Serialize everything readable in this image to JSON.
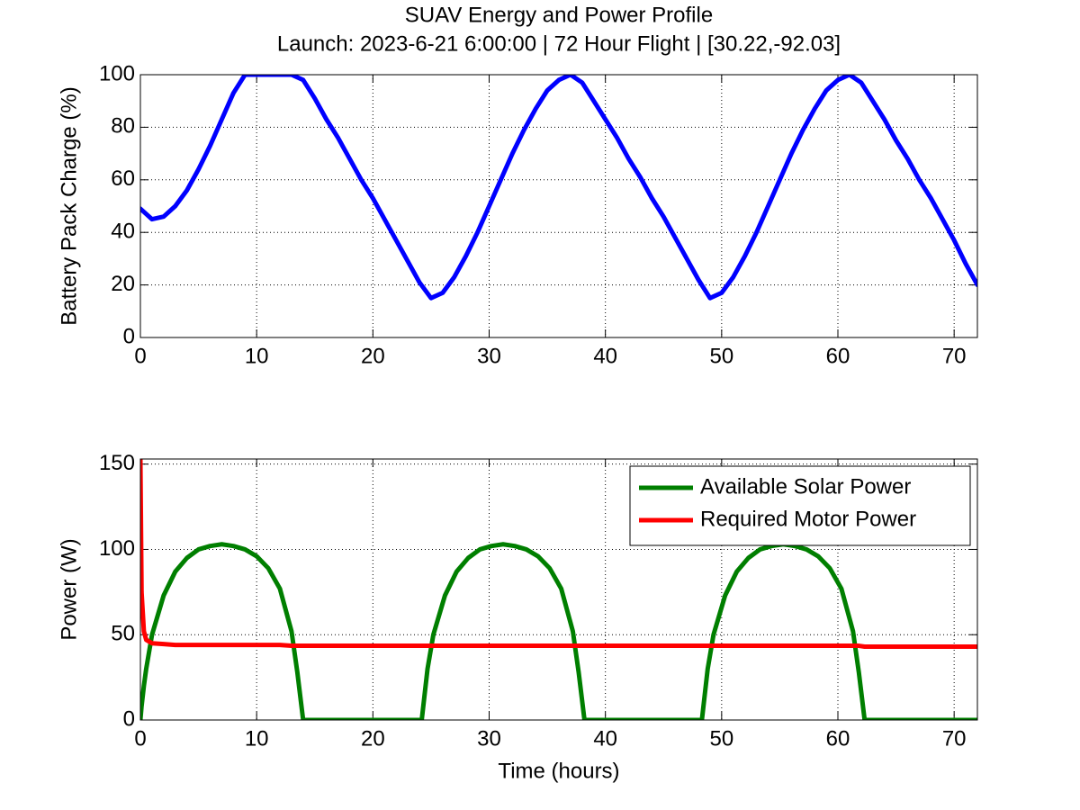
{
  "chart_data": [
    {
      "type": "line",
      "title": "SUAV Energy and Power Profile",
      "subtitle": "Launch: 2023-6-21 6:00:00 | 72 Hour Flight | [30.22,-92.03]",
      "ylabel": "Battery Pack Charge (%)",
      "x": [
        0,
        1,
        2,
        3,
        4,
        5,
        6,
        7,
        8,
        9,
        10,
        11,
        12,
        13,
        14,
        15,
        16,
        17,
        18,
        19,
        20,
        21,
        22,
        23,
        24,
        25,
        26,
        27,
        28,
        29,
        30,
        31,
        32,
        33,
        34,
        35,
        36,
        37,
        38,
        39,
        40,
        41,
        42,
        43,
        44,
        45,
        46,
        47,
        48,
        49,
        50,
        51,
        52,
        53,
        54,
        55,
        56,
        57,
        58,
        59,
        60,
        61,
        62,
        63,
        64,
        65,
        66,
        67,
        68,
        69,
        70,
        71,
        72
      ],
      "values": [
        49,
        45,
        46,
        50,
        56,
        64,
        73,
        83,
        93,
        100,
        100,
        100,
        100,
        100,
        98,
        91,
        83,
        76,
        68,
        60,
        53,
        45,
        37,
        29,
        21,
        15,
        17,
        23,
        31,
        40,
        50,
        60,
        70,
        79,
        87,
        94,
        98,
        100,
        97,
        90,
        83,
        76,
        68,
        61,
        53,
        46,
        38,
        30,
        22,
        15,
        17,
        23,
        31,
        40,
        50,
        60,
        70,
        79,
        87,
        94,
        98,
        100,
        97,
        90,
        83,
        75,
        68,
        60,
        53,
        45,
        37,
        28,
        20
      ],
      "color": "#0000ff",
      "xlim": [
        0,
        72
      ],
      "xticks": [
        0,
        10,
        20,
        30,
        40,
        50,
        60,
        70
      ],
      "ylim": [
        0,
        100
      ],
      "yticks": [
        0,
        20,
        40,
        60,
        80,
        100
      ],
      "grid": true
    },
    {
      "type": "line",
      "xlabel": "Time (hours)",
      "ylabel": "Power (W)",
      "x": [
        0,
        0.1,
        0.3,
        0.5,
        1,
        2,
        3,
        4,
        5,
        6,
        7,
        8,
        9,
        10,
        11,
        12,
        13,
        13.5,
        14,
        16,
        18,
        20,
        22,
        24.2,
        24.7,
        25.2,
        26.2,
        27.2,
        28.2,
        29.2,
        30.2,
        31.2,
        32.2,
        33.2,
        34.2,
        35.2,
        36.2,
        37.2,
        37.7,
        38.2,
        40,
        42,
        44,
        46,
        48.3,
        48.8,
        49.3,
        50.3,
        51.3,
        52.3,
        53.3,
        54.3,
        55.3,
        56.3,
        57.3,
        58.3,
        59.3,
        60.3,
        61.3,
        61.8,
        62.3,
        64,
        66,
        68,
        70,
        72
      ],
      "series": [
        {
          "name": "Available Solar Power",
          "color": "#007f00",
          "values": [
            0,
            8,
            20,
            30,
            50,
            73,
            87,
            95,
            100,
            102,
            103,
            102,
            100,
            96,
            89,
            77,
            52,
            28,
            0,
            0,
            0,
            0,
            0,
            0,
            30,
            50,
            73,
            87,
            95,
            100,
            102,
            103,
            102,
            100,
            96,
            89,
            77,
            52,
            28,
            0,
            0,
            0,
            0,
            0,
            0,
            30,
            50,
            73,
            87,
            95,
            100,
            102,
            103,
            102,
            100,
            96,
            89,
            77,
            52,
            28,
            0,
            0,
            0,
            0,
            0,
            0
          ]
        },
        {
          "name": "Required Motor Power",
          "color": "#ff0000",
          "values": [
            153,
            75,
            52,
            47,
            45,
            44.5,
            44,
            44,
            44,
            44,
            44,
            44,
            44,
            44,
            44,
            44,
            43.5,
            43.5,
            43.5,
            43.5,
            43.5,
            43.5,
            43.5,
            43.5,
            43.5,
            43.5,
            43.5,
            43.5,
            43.5,
            43.5,
            43.5,
            43.5,
            43.5,
            43.5,
            43.5,
            43.5,
            43.5,
            43.5,
            43.5,
            43.5,
            43.5,
            43.5,
            43.5,
            43.5,
            43.5,
            43.5,
            43.5,
            43.5,
            43.5,
            43.5,
            43.5,
            43.5,
            43.5,
            43.5,
            43.5,
            43.5,
            43.5,
            43.5,
            43.5,
            43.5,
            43,
            43,
            43,
            43,
            43,
            43
          ]
        }
      ],
      "xlim": [
        0,
        72
      ],
      "xticks": [
        0,
        10,
        20,
        30,
        40,
        50,
        60,
        70
      ],
      "ylim": [
        0,
        153
      ],
      "yticks": [
        0,
        50,
        100,
        150
      ],
      "grid": true,
      "legend": "northeast"
    }
  ]
}
